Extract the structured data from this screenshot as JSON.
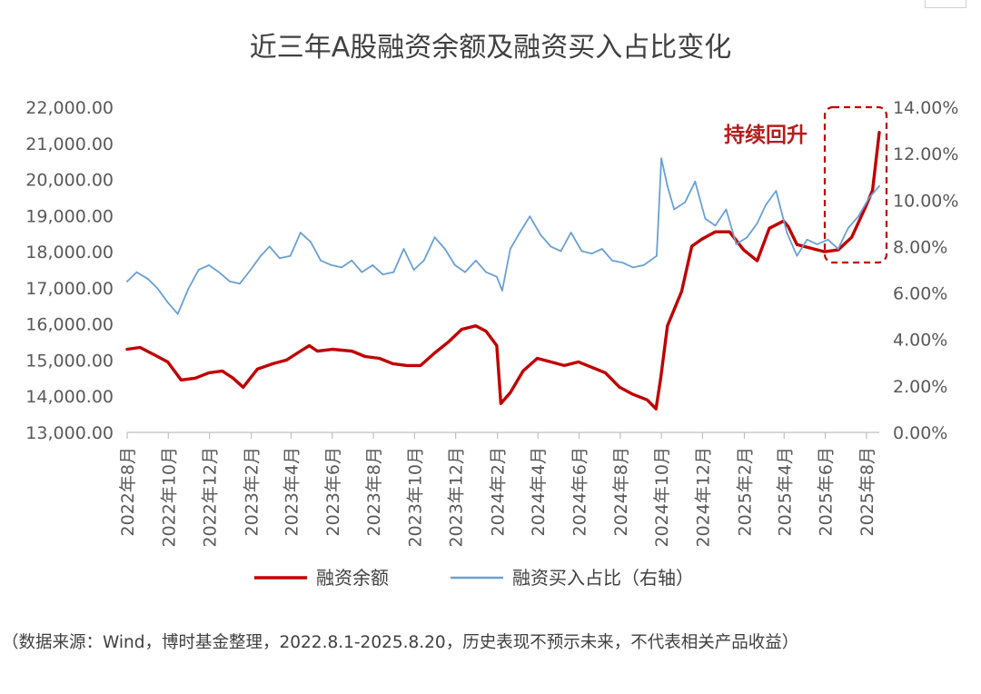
{
  "chart_data": {
    "type": "line",
    "title": "近三年A股融资余额及融资买入占比变化",
    "x_tick_labels": [
      "2022年8月",
      "2022年10月",
      "2022年12月",
      "2023年2月",
      "2023年4月",
      "2023年6月",
      "2023年8月",
      "2023年10月",
      "2023年12月",
      "2024年2月",
      "2024年4月",
      "2024年6月",
      "2024年8月",
      "2024年10月",
      "2024年12月",
      "2025年2月",
      "2025年4月",
      "2025年6月",
      "2025年8月"
    ],
    "y_left": {
      "ticks": [
        "13,000.00",
        "14,000.00",
        "15,000.00",
        "16,000.00",
        "17,000.00",
        "18,000.00",
        "19,000.00",
        "20,000.00",
        "21,000.00",
        "22,000.00"
      ],
      "range": [
        13000,
        22000
      ]
    },
    "y_right": {
      "ticks": [
        "0.00%",
        "2.00%",
        "4.00%",
        "6.00%",
        "8.00%",
        "10.00%",
        "12.00%",
        "14.00%"
      ],
      "range": [
        0,
        14
      ]
    },
    "grid": false,
    "legend_position": "bottom",
    "series": [
      {
        "name": "融资余额",
        "axis": "left",
        "color": "#c00000",
        "x": [
          "2022-08-01",
          "2022-08-20",
          "2022-09-10",
          "2022-09-30",
          "2022-10-20",
          "2022-11-10",
          "2022-11-30",
          "2022-12-20",
          "2023-01-05",
          "2023-01-20",
          "2023-02-10",
          "2023-03-05",
          "2023-03-25",
          "2023-04-15",
          "2023-04-28",
          "2023-05-10",
          "2023-06-01",
          "2023-06-30",
          "2023-07-20",
          "2023-08-10",
          "2023-08-30",
          "2023-09-20",
          "2023-10-10",
          "2023-10-31",
          "2023-11-20",
          "2023-12-10",
          "2023-12-31",
          "2024-01-15",
          "2024-01-31",
          "2024-02-06",
          "2024-02-20",
          "2024-03-10",
          "2024-03-31",
          "2024-04-20",
          "2024-05-10",
          "2024-05-31",
          "2024-06-20",
          "2024-07-10",
          "2024-07-31",
          "2024-08-20",
          "2024-09-10",
          "2024-09-23",
          "2024-09-30",
          "2024-10-10",
          "2024-10-31",
          "2024-11-15",
          "2024-11-30",
          "2024-12-20",
          "2025-01-10",
          "2025-01-31",
          "2025-02-20",
          "2025-03-10",
          "2025-03-31",
          "2025-04-07",
          "2025-04-20",
          "2025-05-10",
          "2025-05-31",
          "2025-06-20",
          "2025-07-10",
          "2025-07-31",
          "2025-08-10",
          "2025-08-20"
        ],
        "values": [
          15300,
          15350,
          15150,
          14950,
          14450,
          14500,
          14650,
          14700,
          14500,
          14250,
          14750,
          14900,
          15000,
          15250,
          15400,
          15250,
          15300,
          15250,
          15100,
          15050,
          14900,
          14850,
          14850,
          15200,
          15500,
          15850,
          15950,
          15800,
          15400,
          13800,
          14100,
          14700,
          15050,
          14950,
          14850,
          14950,
          14800,
          14650,
          14250,
          14050,
          13900,
          13650,
          14500,
          15950,
          16900,
          18150,
          18350,
          18550,
          18550,
          18050,
          17750,
          18650,
          18850,
          18700,
          18200,
          18100,
          18000,
          18050,
          18400,
          19250,
          19700,
          21300
        ]
      },
      {
        "name": "融资买入占比（右轴）",
        "axis": "right",
        "color": "#6aa0d4",
        "x": [
          "2022-08-01",
          "2022-08-15",
          "2022-09-01",
          "2022-09-15",
          "2022-09-30",
          "2022-10-15",
          "2022-10-31",
          "2022-11-15",
          "2022-11-30",
          "2022-12-15",
          "2022-12-31",
          "2023-01-15",
          "2023-01-31",
          "2023-02-15",
          "2023-02-28",
          "2023-03-15",
          "2023-03-31",
          "2023-04-15",
          "2023-04-30",
          "2023-05-15",
          "2023-05-31",
          "2023-06-15",
          "2023-06-30",
          "2023-07-15",
          "2023-07-31",
          "2023-08-15",
          "2023-08-31",
          "2023-09-15",
          "2023-09-30",
          "2023-10-15",
          "2023-10-31",
          "2023-11-15",
          "2023-11-30",
          "2023-12-15",
          "2023-12-31",
          "2024-01-15",
          "2024-01-31",
          "2024-02-08",
          "2024-02-20",
          "2024-03-05",
          "2024-03-20",
          "2024-04-05",
          "2024-04-20",
          "2024-05-05",
          "2024-05-20",
          "2024-06-05",
          "2024-06-20",
          "2024-07-05",
          "2024-07-20",
          "2024-08-05",
          "2024-08-20",
          "2024-09-05",
          "2024-09-24",
          "2024-10-01",
          "2024-10-10",
          "2024-10-20",
          "2024-11-05",
          "2024-11-20",
          "2024-12-05",
          "2024-12-20",
          "2025-01-05",
          "2025-01-20",
          "2025-02-05",
          "2025-02-20",
          "2025-03-05",
          "2025-03-20",
          "2025-04-05",
          "2025-04-20",
          "2025-05-05",
          "2025-05-20",
          "2025-06-05",
          "2025-06-20",
          "2025-07-05",
          "2025-07-20",
          "2025-08-05",
          "2025-08-20"
        ],
        "values": [
          6.5,
          6.9,
          6.6,
          6.2,
          5.6,
          5.1,
          6.2,
          7.0,
          7.2,
          6.9,
          6.5,
          6.4,
          7.0,
          7.6,
          8.0,
          7.5,
          7.6,
          8.6,
          8.2,
          7.4,
          7.2,
          7.1,
          7.4,
          6.9,
          7.2,
          6.8,
          6.9,
          7.9,
          7.0,
          7.4,
          8.4,
          7.9,
          7.2,
          6.9,
          7.4,
          6.9,
          6.7,
          6.1,
          7.9,
          8.6,
          9.3,
          8.5,
          8.0,
          7.8,
          8.6,
          7.8,
          7.7,
          7.9,
          7.4,
          7.3,
          7.1,
          7.2,
          7.6,
          11.8,
          10.6,
          9.6,
          9.9,
          10.8,
          9.2,
          8.9,
          9.6,
          8.1,
          8.4,
          9.0,
          9.8,
          10.4,
          8.6,
          7.6,
          8.3,
          8.1,
          8.3,
          7.9,
          8.8,
          9.3,
          10.1,
          10.6
        ]
      }
    ],
    "annotation": "持续回升",
    "footnote": "（数据来源：Wind，博时基金整理，2022.8.1-2025.8.20，历史表现不预示未来，不代表相关产品收益）"
  }
}
